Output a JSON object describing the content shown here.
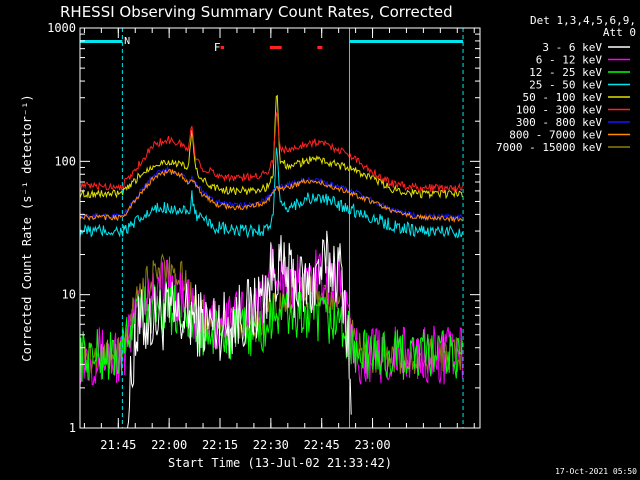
{
  "chart_data": {
    "type": "line",
    "title": "RHESSI Observing Summary Count Rates, Corrected",
    "xlabel": "Start Time (13-Jul-02 21:33:42)",
    "ylabel": "Corrected Count Rate (s⁻¹ detector⁻¹)",
    "x_unit": "minutes after 21:33:42 UT",
    "xlim": [
      0,
      118
    ],
    "ylim": [
      1,
      1000
    ],
    "yscale": "log",
    "x_ticks": [
      {
        "value": 11.3,
        "label": "21:45"
      },
      {
        "value": 26.3,
        "label": "22:00"
      },
      {
        "value": 41.3,
        "label": "22:15"
      },
      {
        "value": 56.3,
        "label": "22:30"
      },
      {
        "value": 71.3,
        "label": "22:45"
      },
      {
        "value": 86.3,
        "label": "23:00"
      }
    ],
    "y_ticks": [
      {
        "value": 1,
        "label": "1"
      },
      {
        "value": 10,
        "label": "10"
      },
      {
        "value": 100,
        "label": "100"
      },
      {
        "value": 1000,
        "label": "1000"
      }
    ],
    "legend_header": [
      "Det 1,3,4,5,6,9,",
      "Att 0"
    ],
    "legend_placement": "right",
    "night_bars": [
      {
        "x": [
          0,
          12.5
        ],
        "color": "#00e5ee"
      },
      {
        "x": [
          79.5,
          113
        ],
        "color": "#00e5ee"
      }
    ],
    "markers": [
      {
        "label": "N",
        "x": 13.0,
        "color": "#00e5ee"
      }
    ],
    "flag_label": {
      "label": "F",
      "x": 39.5,
      "color": "#ff2020"
    },
    "flag_bars": [
      {
        "x": [
          41.5,
          42.5
        ]
      },
      {
        "x": [
          56.0,
          59.5
        ]
      },
      {
        "x": [
          70.0,
          71.5
        ]
      }
    ],
    "flag_color": "#ff2020",
    "series": [
      {
        "name": "3 - 6 keV",
        "color": "#ffffff",
        "points": [
          [
            14,
            1.2
          ],
          [
            15,
            2
          ],
          [
            16,
            4.5
          ],
          [
            18,
            6
          ],
          [
            21,
            6.5
          ],
          [
            26,
            7
          ],
          [
            30,
            6.5
          ],
          [
            33,
            7
          ],
          [
            36,
            6
          ],
          [
            40,
            6
          ],
          [
            44,
            6
          ],
          [
            47,
            7
          ],
          [
            51,
            7.5
          ],
          [
            54,
            10
          ],
          [
            56,
            13
          ],
          [
            58,
            17
          ],
          [
            60,
            14
          ],
          [
            64,
            12
          ],
          [
            68,
            11
          ],
          [
            70,
            15
          ],
          [
            72,
            16
          ],
          [
            75,
            17
          ],
          [
            77,
            14
          ],
          [
            78,
            10
          ],
          [
            79,
            5
          ],
          [
            80,
            1.5
          ]
        ]
      },
      {
        "name": "6 - 12 keV",
        "color": "#ff00ff",
        "points": [
          [
            0,
            3.5
          ],
          [
            12,
            3.5
          ],
          [
            13.5,
            3.5
          ],
          [
            15,
            5
          ],
          [
            17,
            8
          ],
          [
            20,
            10
          ],
          [
            24,
            12
          ],
          [
            28,
            11
          ],
          [
            31,
            9
          ],
          [
            33,
            7
          ],
          [
            35,
            6
          ],
          [
            39,
            6
          ],
          [
            43,
            6.5
          ],
          [
            48,
            7
          ],
          [
            52,
            7.5
          ],
          [
            55,
            12
          ],
          [
            56,
            15
          ],
          [
            58,
            18
          ],
          [
            60,
            13
          ],
          [
            64,
            12
          ],
          [
            68,
            12
          ],
          [
            71,
            14
          ],
          [
            73,
            14
          ],
          [
            76,
            12
          ],
          [
            78,
            10
          ],
          [
            79,
            6
          ],
          [
            80,
            4
          ],
          [
            83,
            3.5
          ],
          [
            100,
            3.5
          ],
          [
            113,
            3.5
          ]
        ]
      },
      {
        "name": "12 - 25 keV",
        "color": "#00ff00",
        "points": [
          [
            0,
            3.5
          ],
          [
            12,
            3.5
          ],
          [
            14,
            4.5
          ],
          [
            16,
            7
          ],
          [
            20,
            8
          ],
          [
            26,
            8
          ],
          [
            30,
            7.5
          ],
          [
            33,
            6
          ],
          [
            35,
            5
          ],
          [
            40,
            5
          ],
          [
            45,
            5
          ],
          [
            50,
            5.5
          ],
          [
            53,
            5
          ],
          [
            56,
            6
          ],
          [
            58,
            7.5
          ],
          [
            62,
            7
          ],
          [
            66,
            7
          ],
          [
            70,
            6.5
          ],
          [
            74,
            6.5
          ],
          [
            77,
            6
          ],
          [
            79,
            5
          ],
          [
            80,
            4
          ],
          [
            83,
            3.5
          ],
          [
            100,
            3.5
          ],
          [
            113,
            3.5
          ]
        ]
      },
      {
        "name": "25 - 50 keV",
        "color": "#00e5ee",
        "points": [
          [
            0,
            30
          ],
          [
            12,
            30
          ],
          [
            14,
            31
          ],
          [
            18,
            37
          ],
          [
            22,
            43
          ],
          [
            26,
            46
          ],
          [
            30,
            42
          ],
          [
            32,
            40
          ],
          [
            33,
            55
          ],
          [
            34,
            40
          ],
          [
            36,
            36
          ],
          [
            40,
            32
          ],
          [
            45,
            30
          ],
          [
            50,
            30
          ],
          [
            55,
            31
          ],
          [
            57,
            38
          ],
          [
            58,
            135
          ],
          [
            59,
            45
          ],
          [
            62,
            45
          ],
          [
            66,
            52
          ],
          [
            70,
            53
          ],
          [
            74,
            50
          ],
          [
            80,
            44
          ],
          [
            86,
            38
          ],
          [
            92,
            33
          ],
          [
            100,
            30
          ],
          [
            113,
            30
          ]
        ]
      },
      {
        "name": "50 - 100 keV",
        "color": "#e0e000",
        "points": [
          [
            0,
            57
          ],
          [
            12,
            57
          ],
          [
            14,
            62
          ],
          [
            18,
            80
          ],
          [
            22,
            95
          ],
          [
            26,
            100
          ],
          [
            30,
            93
          ],
          [
            32,
            90
          ],
          [
            33,
            170
          ],
          [
            34,
            90
          ],
          [
            36,
            72
          ],
          [
            40,
            63
          ],
          [
            45,
            60
          ],
          [
            50,
            60
          ],
          [
            55,
            63
          ],
          [
            57,
            80
          ],
          [
            58,
            380
          ],
          [
            59,
            100
          ],
          [
            62,
            90
          ],
          [
            66,
            100
          ],
          [
            70,
            105
          ],
          [
            74,
            97
          ],
          [
            80,
            88
          ],
          [
            86,
            75
          ],
          [
            92,
            62
          ],
          [
            100,
            57
          ],
          [
            113,
            57
          ]
        ]
      },
      {
        "name": "100 - 300 keV",
        "color": "#ff2020",
        "points": [
          [
            0,
            65
          ],
          [
            12,
            65
          ],
          [
            14,
            72
          ],
          [
            18,
            100
          ],
          [
            22,
            135
          ],
          [
            26,
            145
          ],
          [
            30,
            135
          ],
          [
            32,
            120
          ],
          [
            33,
            190
          ],
          [
            34,
            110
          ],
          [
            36,
            90
          ],
          [
            40,
            80
          ],
          [
            45,
            75
          ],
          [
            50,
            76
          ],
          [
            55,
            82
          ],
          [
            57,
            100
          ],
          [
            58,
            260
          ],
          [
            59,
            125
          ],
          [
            62,
            120
          ],
          [
            66,
            135
          ],
          [
            70,
            140
          ],
          [
            74,
            130
          ],
          [
            80,
            110
          ],
          [
            86,
            85
          ],
          [
            92,
            68
          ],
          [
            100,
            63
          ],
          [
            113,
            63
          ]
        ]
      },
      {
        "name": "300 - 800 keV",
        "color": "#1414ff",
        "points": [
          [
            0,
            39
          ],
          [
            12,
            39
          ],
          [
            14,
            43
          ],
          [
            18,
            60
          ],
          [
            22,
            80
          ],
          [
            26,
            87
          ],
          [
            30,
            80
          ],
          [
            32,
            72
          ],
          [
            33,
            74
          ],
          [
            36,
            60
          ],
          [
            40,
            50
          ],
          [
            45,
            47
          ],
          [
            50,
            47
          ],
          [
            55,
            52
          ],
          [
            58,
            64
          ],
          [
            62,
            67
          ],
          [
            66,
            72
          ],
          [
            70,
            72
          ],
          [
            74,
            67
          ],
          [
            80,
            60
          ],
          [
            86,
            52
          ],
          [
            92,
            43
          ],
          [
            100,
            39
          ],
          [
            113,
            38
          ]
        ]
      },
      {
        "name": "800 - 7000 keV",
        "color": "#ff8c00",
        "points": [
          [
            0,
            38
          ],
          [
            12,
            38
          ],
          [
            14,
            42
          ],
          [
            18,
            58
          ],
          [
            22,
            77
          ],
          [
            26,
            84
          ],
          [
            30,
            78
          ],
          [
            32,
            70
          ],
          [
            33,
            72
          ],
          [
            36,
            57
          ],
          [
            40,
            48
          ],
          [
            45,
            45
          ],
          [
            50,
            45
          ],
          [
            55,
            50
          ],
          [
            58,
            62
          ],
          [
            62,
            65
          ],
          [
            66,
            70
          ],
          [
            70,
            70
          ],
          [
            74,
            65
          ],
          [
            80,
            58
          ],
          [
            86,
            50
          ],
          [
            92,
            42
          ],
          [
            100,
            38
          ],
          [
            113,
            37
          ]
        ]
      },
      {
        "name": "7000 - 15000 keV",
        "color": "#8b7d10",
        "points": [
          [
            0,
            3.5
          ],
          [
            12,
            3.5
          ],
          [
            14,
            5.5
          ],
          [
            18,
            11
          ],
          [
            22,
            14
          ],
          [
            26,
            15
          ],
          [
            30,
            13
          ],
          [
            33,
            9
          ],
          [
            36,
            7
          ],
          [
            40,
            6.5
          ],
          [
            44,
            6
          ],
          [
            48,
            6.5
          ],
          [
            52,
            6
          ],
          [
            55,
            6.5
          ],
          [
            58,
            8
          ],
          [
            62,
            10
          ],
          [
            66,
            11
          ],
          [
            70,
            10
          ],
          [
            74,
            9
          ],
          [
            77,
            8
          ],
          [
            79,
            6
          ],
          [
            81,
            4.5
          ],
          [
            84,
            3.5
          ],
          [
            100,
            3.5
          ],
          [
            113,
            3.5
          ]
        ]
      }
    ]
  },
  "timestamp": "17-Oct-2021 05:50"
}
